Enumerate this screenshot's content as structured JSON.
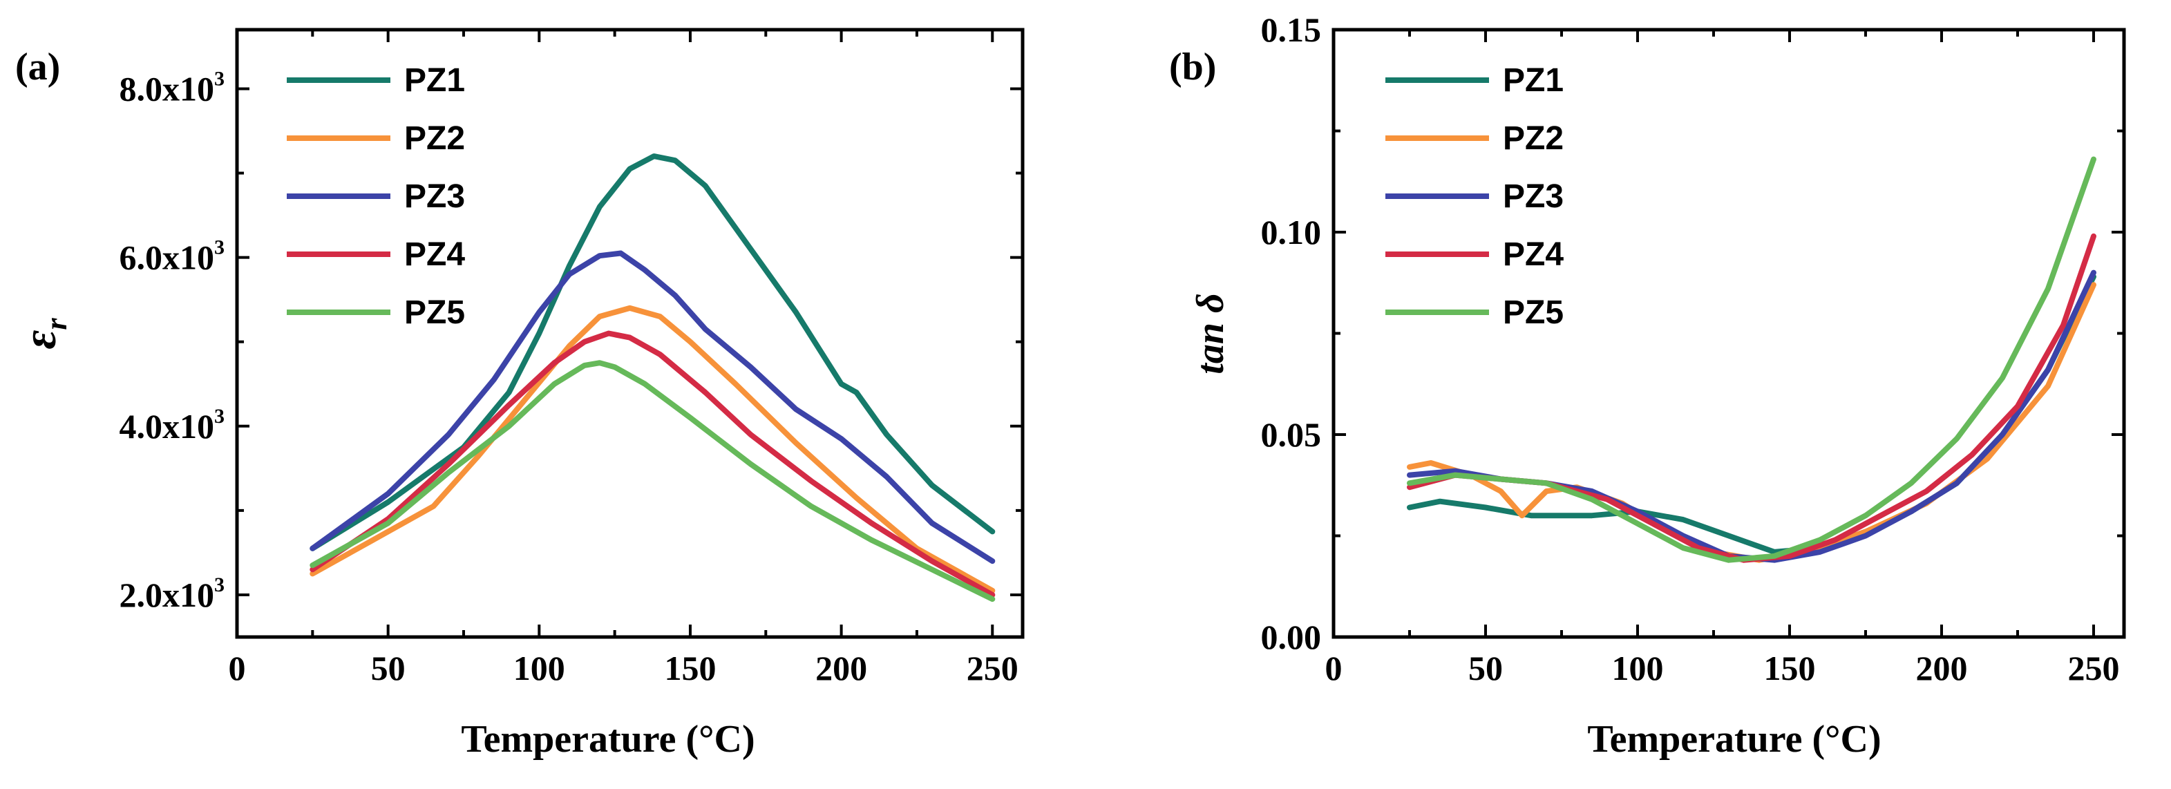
{
  "chart_data": [
    {
      "type": "line",
      "panel_label": "(a)",
      "xlabel": "Temperature (°C)",
      "ylabel_symbol": "ε",
      "ylabel_subscript": "r",
      "xlim": [
        0,
        260
      ],
      "ylim": [
        1500,
        8700
      ],
      "xticks": [
        0,
        50,
        100,
        150,
        200,
        250
      ],
      "xtick_labels": [
        "0",
        "50",
        "100",
        "150",
        "200",
        "250"
      ],
      "yticks": [
        2000,
        4000,
        6000,
        8000
      ],
      "ytick_labels": [
        {
          "mantissa": "2.0x10",
          "exp": "3"
        },
        {
          "mantissa": "4.0x10",
          "exp": "3"
        },
        {
          "mantissa": "6.0x10",
          "exp": "3"
        },
        {
          "mantissa": "8.0x10",
          "exp": "3"
        }
      ],
      "series": [
        {
          "name": "PZ1",
          "color": "#167a6a",
          "x": [
            25,
            50,
            75,
            90,
            100,
            110,
            120,
            130,
            138,
            145,
            155,
            170,
            185,
            200,
            205,
            215,
            230,
            250
          ],
          "y": [
            2550,
            3100,
            3750,
            4400,
            5100,
            5900,
            6600,
            7050,
            7200,
            7150,
            6850,
            6100,
            5350,
            4500,
            4400,
            3900,
            3300,
            2750
          ]
        },
        {
          "name": "PZ2",
          "color": "#f7923a",
          "x": [
            25,
            45,
            65,
            80,
            95,
            110,
            120,
            130,
            140,
            150,
            165,
            185,
            205,
            225,
            250
          ],
          "y": [
            2250,
            2650,
            3050,
            3650,
            4300,
            4950,
            5300,
            5400,
            5300,
            5000,
            4500,
            3800,
            3150,
            2550,
            2050
          ]
        },
        {
          "name": "PZ3",
          "color": "#3c43a8",
          "x": [
            25,
            50,
            70,
            85,
            100,
            110,
            120,
            127,
            135,
            145,
            155,
            170,
            185,
            200,
            215,
            230,
            250
          ],
          "y": [
            2550,
            3200,
            3900,
            4550,
            5350,
            5800,
            6020,
            6050,
            5850,
            5550,
            5150,
            4700,
            4200,
            3850,
            3400,
            2850,
            2400
          ]
        },
        {
          "name": "PZ4",
          "color": "#d42b45",
          "x": [
            25,
            50,
            70,
            90,
            105,
            115,
            123,
            130,
            140,
            155,
            170,
            190,
            210,
            230,
            250
          ],
          "y": [
            2300,
            2900,
            3550,
            4250,
            4750,
            5000,
            5100,
            5050,
            4850,
            4400,
            3900,
            3350,
            2850,
            2400,
            2000
          ]
        },
        {
          "name": "PZ5",
          "color": "#66b95a",
          "x": [
            25,
            50,
            70,
            90,
            105,
            115,
            120,
            125,
            135,
            150,
            170,
            190,
            210,
            230,
            250
          ],
          "y": [
            2350,
            2850,
            3450,
            4000,
            4500,
            4720,
            4750,
            4700,
            4500,
            4100,
            3550,
            3050,
            2650,
            2300,
            1950
          ]
        }
      ]
    },
    {
      "type": "line",
      "panel_label": "(b)",
      "xlabel": "Temperature (°C)",
      "ylabel": "tan δ",
      "xlim": [
        0,
        260
      ],
      "ylim": [
        0.0,
        0.15
      ],
      "xticks": [
        0,
        50,
        100,
        150,
        200,
        250
      ],
      "xtick_labels": [
        "0",
        "50",
        "100",
        "150",
        "200",
        "250"
      ],
      "yticks": [
        0.0,
        0.05,
        0.1,
        0.15
      ],
      "ytick_labels": [
        "0.00",
        "0.05",
        "0.10",
        "0.15"
      ],
      "series": [
        {
          "name": "PZ1",
          "color": "#167a6a",
          "x": [
            25,
            35,
            50,
            65,
            85,
            100,
            115,
            130,
            145,
            160,
            175,
            190,
            205,
            220,
            235,
            250
          ],
          "y": [
            0.032,
            0.0335,
            0.032,
            0.03,
            0.03,
            0.031,
            0.029,
            0.025,
            0.021,
            0.022,
            0.026,
            0.031,
            0.038,
            0.05,
            0.066,
            0.089
          ]
        },
        {
          "name": "PZ2",
          "color": "#f7923a",
          "x": [
            25,
            32,
            45,
            55,
            62,
            70,
            80,
            95,
            110,
            125,
            140,
            155,
            175,
            195,
            215,
            235,
            250
          ],
          "y": [
            0.042,
            0.043,
            0.04,
            0.036,
            0.03,
            0.036,
            0.037,
            0.033,
            0.026,
            0.021,
            0.019,
            0.021,
            0.026,
            0.033,
            0.044,
            0.062,
            0.087
          ]
        },
        {
          "name": "PZ3",
          "color": "#3c43a8",
          "x": [
            25,
            40,
            55,
            70,
            85,
            100,
            115,
            130,
            145,
            160,
            175,
            190,
            205,
            220,
            235,
            250
          ],
          "y": [
            0.04,
            0.041,
            0.039,
            0.038,
            0.036,
            0.031,
            0.025,
            0.02,
            0.019,
            0.021,
            0.025,
            0.031,
            0.038,
            0.05,
            0.066,
            0.09
          ]
        },
        {
          "name": "PZ4",
          "color": "#d42b45",
          "x": [
            25,
            40,
            55,
            70,
            90,
            105,
            120,
            135,
            150,
            165,
            180,
            195,
            210,
            225,
            240,
            250
          ],
          "y": [
            0.037,
            0.04,
            0.039,
            0.038,
            0.034,
            0.028,
            0.022,
            0.019,
            0.02,
            0.024,
            0.03,
            0.036,
            0.045,
            0.057,
            0.077,
            0.099
          ]
        },
        {
          "name": "PZ5",
          "color": "#66b95a",
          "x": [
            25,
            40,
            55,
            70,
            85,
            100,
            115,
            130,
            145,
            160,
            175,
            190,
            205,
            220,
            235,
            250
          ],
          "y": [
            0.038,
            0.04,
            0.039,
            0.038,
            0.034,
            0.028,
            0.022,
            0.019,
            0.02,
            0.024,
            0.03,
            0.038,
            0.049,
            0.064,
            0.086,
            0.118
          ]
        }
      ]
    }
  ]
}
